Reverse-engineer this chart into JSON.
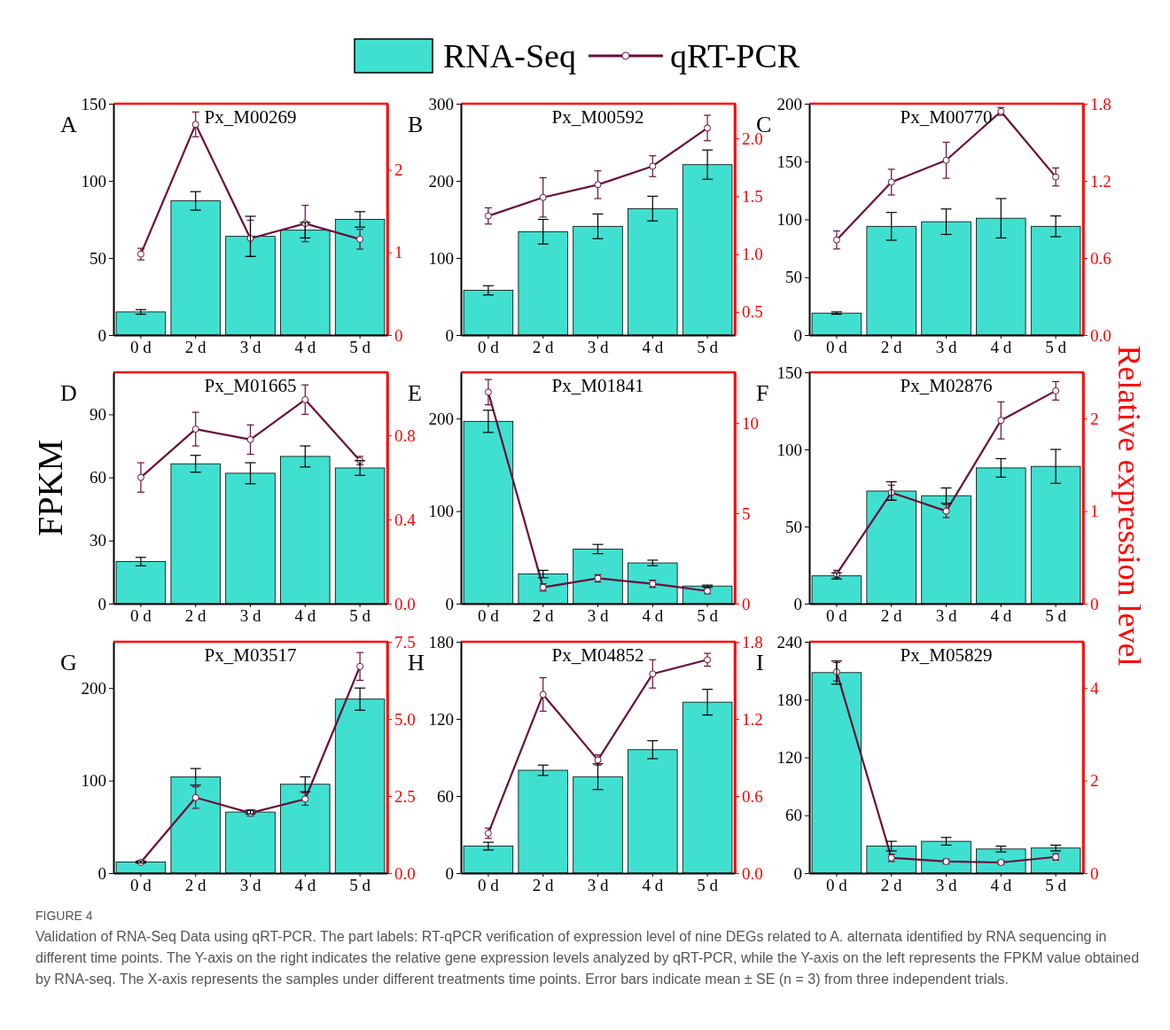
{
  "chart_data": [
    {
      "type": "bar",
      "title": "Px_M00269",
      "annotations": [
        "A",
        "FIGURE 4",
        "Validation of RNA-Seq Data using qRT-PCR. The part labels: RT-qPCR verification of expression level of nine DEGs related to A. alternata identified by RNA sequencing in different time points. The Y-axis on the right indicates the relative gene expression levels analyzed by qRT-PCR, while the Y-axis on the left represents the FPKM value obtained by RNA-seq. The X-axis represents the samples under different treatments time points. Error bars indicate mean ± SE (n = 3) from three independent trials."
      ],
      "legend": "top",
      "marker": "circle",
      "grid": false,
      "categories": [
        "0 d",
        "2 d",
        "3 d",
        "4 d",
        "5 d"
      ],
      "ylim": [
        0,
        150
      ],
      "yticks": [
        0,
        50,
        100,
        150
      ],
      "y2lim": [
        0,
        2.8
      ],
      "y2ticks": [
        0,
        1,
        2
      ],
      "series": [
        {
          "name": "RNA-Seq",
          "type": "bar",
          "color": "#40e0d0",
          "values": [
            15,
            87,
            64,
            68,
            75
          ],
          "errors": [
            1.5,
            6,
            13,
            5,
            5
          ]
        },
        {
          "name": "qRT-PCR",
          "type": "line",
          "axis": "y2",
          "color": "#6b0d3a",
          "values": [
            0.98,
            2.55,
            1.17,
            1.35,
            1.16
          ],
          "errors": [
            0.07,
            0.15,
            0.22,
            0.22,
            0.12
          ]
        }
      ]
    },
    {
      "type": "bar",
      "title": "Px_M00592",
      "annotations": [
        "B"
      ],
      "marker": "circle",
      "grid": false,
      "categories": [
        "0 d",
        "2 d",
        "3 d",
        "4 d",
        "5 d"
      ],
      "ylim": [
        0,
        300
      ],
      "yticks": [
        0,
        100,
        200,
        300
      ],
      "y2lim": [
        0.3,
        2.3
      ],
      "y2ticks": [
        {
          "value": 0.5,
          "label": "0.5"
        },
        {
          "value": 1,
          "label": "1.0"
        },
        {
          "value": 1.5,
          "label": "1.5"
        },
        {
          "value": 2,
          "label": "2.0"
        }
      ],
      "series": [
        {
          "type": "bar",
          "color": "#40e0d0",
          "values": [
            58,
            134,
            141,
            164,
            221
          ],
          "errors": [
            6,
            16,
            16,
            16,
            19
          ]
        },
        {
          "type": "line",
          "axis": "y2",
          "color": "#6b0d3a",
          "values": [
            1.33,
            1.49,
            1.6,
            1.76,
            2.09
          ],
          "errors": [
            0.07,
            0.17,
            0.12,
            0.09,
            0.11
          ]
        }
      ]
    },
    {
      "type": "bar",
      "title": "Px_M00770",
      "annotations": [
        "C"
      ],
      "marker": "circle",
      "grid": false,
      "categories": [
        "0 d",
        "2 d",
        "3 d",
        "4 d",
        "5 d"
      ],
      "ylim": [
        0,
        200
      ],
      "yticks": [
        0,
        50,
        100,
        150,
        200
      ],
      "y2lim": [
        0,
        1.8
      ],
      "y2ticks": [
        {
          "value": 0,
          "label": "0.0"
        },
        {
          "value": 0.6,
          "label": "0.6"
        },
        {
          "value": 1.2,
          "label": "1.2"
        },
        {
          "value": 1.8,
          "label": "1.8"
        }
      ],
      "series": [
        {
          "type": "bar",
          "color": "#40e0d0",
          "values": [
            19,
            94,
            98,
            101,
            94
          ],
          "errors": [
            1,
            12,
            11,
            17,
            9
          ]
        },
        {
          "type": "line",
          "axis": "y2",
          "color": "#6b0d3a",
          "values": [
            0.74,
            1.19,
            1.36,
            1.74,
            1.23
          ],
          "errors": [
            0.07,
            0.1,
            0.14,
            0.03,
            0.07
          ]
        }
      ]
    },
    {
      "type": "bar",
      "title": "Px_M01665",
      "annotations": [
        "D"
      ],
      "ylabel": "FPKM",
      "marker": "circle",
      "grid": false,
      "categories": [
        "0 d",
        "2 d",
        "3 d",
        "4 d",
        "5 d"
      ],
      "ylim": [
        0,
        110
      ],
      "yticks": [
        0,
        30,
        60,
        90
      ],
      "y2lim": [
        0,
        1.1
      ],
      "y2ticks": [
        {
          "value": 0,
          "label": "0.0"
        },
        {
          "value": 0.4,
          "label": "0.4"
        },
        {
          "value": 0.8,
          "label": "0.8"
        }
      ],
      "series": [
        {
          "type": "bar",
          "color": "#40e0d0",
          "values": [
            20,
            66.5,
            62,
            70,
            64.5
          ],
          "errors": [
            2,
            4,
            5,
            5,
            3.5
          ]
        },
        {
          "type": "line",
          "axis": "y2",
          "color": "#6b0d3a",
          "values": [
            0.6,
            0.83,
            0.78,
            0.97,
            0.68
          ],
          "errors": [
            0.07,
            0.08,
            0.07,
            0.07,
            0.02
          ]
        }
      ]
    },
    {
      "type": "bar",
      "title": "Px_M01841",
      "annotations": [
        "E"
      ],
      "marker": "circle",
      "grid": false,
      "categories": [
        "0 d",
        "2 d",
        "3 d",
        "4 d",
        "5 d"
      ],
      "ylim": [
        0,
        250
      ],
      "yticks": [
        0,
        100,
        200
      ],
      "y2lim": [
        0,
        12.8
      ],
      "y2ticks": [
        0,
        5,
        10
      ],
      "series": [
        {
          "type": "bar",
          "color": "#40e0d0",
          "values": [
            197,
            32,
            59,
            44,
            19
          ],
          "errors": [
            12,
            4,
            5,
            3,
            1
          ]
        },
        {
          "type": "line",
          "axis": "y2",
          "color": "#6b0d3a",
          "values": [
            11.7,
            0.9,
            1.4,
            1.1,
            0.7
          ],
          "errors": [
            0.7,
            0.2,
            0.2,
            0.2,
            0.15
          ]
        }
      ]
    },
    {
      "type": "bar",
      "title": "Px_M02876",
      "annotations": [
        "F"
      ],
      "y2label": "Relative expression level",
      "marker": "circle",
      "grid": false,
      "categories": [
        "0 d",
        "2 d",
        "3 d",
        "4 d",
        "5 d"
      ],
      "ylim": [
        0,
        150
      ],
      "yticks": [
        0,
        50,
        100,
        150
      ],
      "y2lim": [
        0,
        2.5
      ],
      "y2ticks": [
        0,
        1,
        2
      ],
      "series": [
        {
          "type": "bar",
          "color": "#40e0d0",
          "values": [
            18,
            73,
            70,
            88,
            89
          ],
          "errors": [
            2,
            6,
            5,
            6,
            11
          ]
        },
        {
          "type": "line",
          "axis": "y2",
          "color": "#6b0d3a",
          "values": [
            0.32,
            1.2,
            1.0,
            1.98,
            2.3
          ],
          "errors": [
            0.04,
            0.08,
            0.07,
            0.2,
            0.1
          ]
        }
      ]
    },
    {
      "type": "bar",
      "title": "Px_M03517",
      "annotations": [
        "G"
      ],
      "marker": "circle",
      "grid": false,
      "categories": [
        "0 d",
        "2 d",
        "3 d",
        "4 d",
        "5 d"
      ],
      "ylim": [
        0,
        250
      ],
      "yticks": [
        0,
        100,
        200
      ],
      "y2lim": [
        0,
        7.5
      ],
      "y2ticks": [
        {
          "value": 0,
          "label": "0.0"
        },
        {
          "value": 2.5,
          "label": "2.5"
        },
        {
          "value": 5,
          "label": "5.0"
        },
        {
          "value": 7.5,
          "label": "7.5"
        }
      ],
      "series": [
        {
          "type": "bar",
          "color": "#40e0d0",
          "values": [
            12,
            104,
            66,
            96,
            188
          ],
          "errors": [
            1,
            9,
            2,
            8,
            12
          ]
        },
        {
          "type": "line",
          "axis": "y2",
          "color": "#6b0d3a",
          "values": [
            0.35,
            2.45,
            1.95,
            2.4,
            6.7
          ],
          "errors": [
            0.03,
            0.35,
            0.1,
            0.2,
            0.45
          ]
        }
      ]
    },
    {
      "type": "bar",
      "title": "Px_M04852",
      "annotations": [
        "H"
      ],
      "marker": "circle",
      "grid": false,
      "categories": [
        "0 d",
        "2 d",
        "3 d",
        "4 d",
        "5 d"
      ],
      "ylim": [
        0,
        180
      ],
      "yticks": [
        0,
        60,
        120,
        180
      ],
      "y2lim": [
        0,
        1.8
      ],
      "y2ticks": [
        {
          "value": 0,
          "label": "0.0"
        },
        {
          "value": 0.6,
          "label": "0.6"
        },
        {
          "value": 1.2,
          "label": "1.2"
        },
        {
          "value": 1.8,
          "label": "1.8"
        }
      ],
      "series": [
        {
          "type": "bar",
          "color": "#40e0d0",
          "values": [
            21,
            80,
            75,
            96,
            133
          ],
          "errors": [
            3,
            4,
            10,
            7,
            10
          ]
        },
        {
          "type": "line",
          "axis": "y2",
          "color": "#6b0d3a",
          "values": [
            0.31,
            1.39,
            0.88,
            1.55,
            1.66
          ],
          "errors": [
            0.04,
            0.13,
            0.04,
            0.11,
            0.05
          ]
        }
      ]
    },
    {
      "type": "bar",
      "title": "Px_M05829",
      "annotations": [
        "I"
      ],
      "marker": "circle",
      "grid": false,
      "categories": [
        "0 d",
        "2 d",
        "3 d",
        "4 d",
        "5 d"
      ],
      "ylim": [
        0,
        240
      ],
      "yticks": [
        0,
        60,
        120,
        180,
        240
      ],
      "y2lim": [
        0,
        5
      ],
      "y2ticks": [
        0,
        2,
        4
      ],
      "series": [
        {
          "type": "bar",
          "color": "#40e0d0",
          "values": [
            208,
            28,
            33,
            25,
            26
          ],
          "errors": [
            12,
            5,
            4,
            3,
            3
          ]
        },
        {
          "type": "line",
          "axis": "y2",
          "color": "#6b0d3a",
          "values": [
            4.35,
            0.33,
            0.25,
            0.23,
            0.35
          ],
          "errors": [
            0.2,
            0.08,
            0.05,
            0.04,
            0.07
          ]
        }
      ]
    }
  ]
}
